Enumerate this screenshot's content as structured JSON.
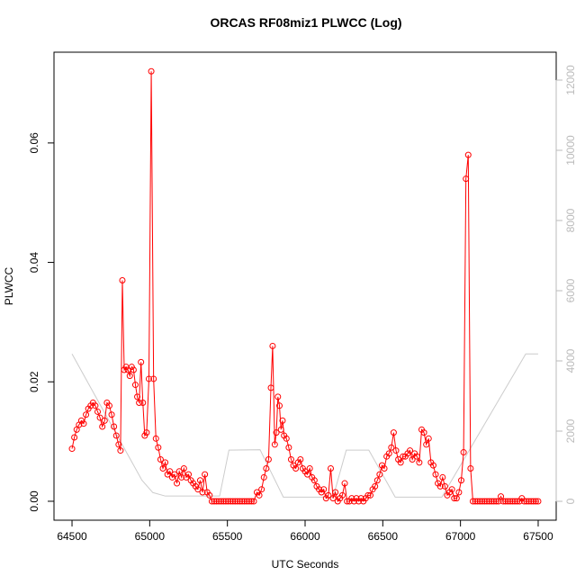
{
  "chart_data": {
    "type": "line",
    "title": "ORCAS RF08miz1 PLWCC (Log)",
    "x_label": "UTC Seconds",
    "y_label": "PLWCC",
    "xlim": [
      64384,
      67616
    ],
    "xticks": [
      64500,
      65000,
      65500,
      66000,
      66500,
      67000,
      67500
    ],
    "ylim": [
      -0.00317,
      0.0752
    ],
    "yticks": [
      {
        "value": 0,
        "label": "0.00"
      },
      0.02,
      0.04,
      0.06
    ],
    "y2lim": [
      -538,
      12795
    ],
    "y2ticks": [
      0,
      2000,
      4000,
      6000,
      8000,
      10000,
      12000
    ],
    "series": [
      {
        "color": "#ff0000",
        "markers": true,
        "x": [
          64500,
          64515,
          64530,
          64545,
          64560,
          64575,
          64590,
          64605,
          64620,
          64635,
          64650,
          64665,
          64680,
          64695,
          64710,
          64725,
          64740,
          64755,
          64770,
          64785,
          64800,
          64812,
          64824,
          64836,
          64848,
          64860,
          64872,
          64884,
          64896,
          64908,
          64920,
          64932,
          64944,
          64956,
          64968,
          64980,
          64995,
          65010,
          65025,
          65040,
          65055,
          65070,
          65085,
          65100,
          65115,
          65130,
          65145,
          65160,
          65175,
          65190,
          65205,
          65220,
          65235,
          65250,
          65265,
          65280,
          65295,
          65310,
          65325,
          65340,
          65355,
          65370,
          65385,
          65400,
          65415,
          65430,
          65445,
          65460,
          65475,
          65490,
          65505,
          65520,
          65535,
          65550,
          65565,
          65580,
          65595,
          65610,
          65625,
          65640,
          65655,
          65670,
          65690,
          65705,
          65720,
          65735,
          65750,
          65765,
          65780,
          65791,
          65805,
          65815,
          65825,
          65835,
          65845,
          65855,
          65865,
          65880,
          65895,
          65910,
          65925,
          65940,
          65955,
          65970,
          65985,
          66000,
          66015,
          66030,
          66045,
          66060,
          66075,
          66090,
          66105,
          66120,
          66135,
          66150,
          66165,
          66180,
          66195,
          66210,
          66225,
          66240,
          66255,
          66270,
          66285,
          66300,
          66315,
          66330,
          66345,
          66360,
          66375,
          66390,
          66405,
          66420,
          66435,
          66450,
          66465,
          66480,
          66495,
          66510,
          66525,
          66540,
          66555,
          66570,
          66585,
          66600,
          66615,
          66630,
          66645,
          66660,
          66675,
          66690,
          66705,
          66720,
          66735,
          66750,
          66765,
          66780,
          66795,
          66810,
          66825,
          66840,
          66855,
          66870,
          66885,
          66900,
          66915,
          66930,
          66945,
          66960,
          66975,
          66990,
          67005,
          67020,
          67035,
          67050,
          67065,
          67080,
          67095,
          67110,
          67125,
          67140,
          67155,
          67170,
          67185,
          67200,
          67215,
          67230,
          67245,
          67260,
          67275,
          67290,
          67305,
          67320,
          67335,
          67350,
          67365,
          67380,
          67395,
          67410,
          67425,
          67440,
          67455,
          67470,
          67485,
          67500
        ],
        "values": [
          0.0088,
          0.0107,
          0.012,
          0.0128,
          0.0135,
          0.013,
          0.0145,
          0.0155,
          0.016,
          0.0165,
          0.016,
          0.015,
          0.014,
          0.0125,
          0.0135,
          0.0165,
          0.016,
          0.0145,
          0.0125,
          0.011,
          0.0095,
          0.0085,
          0.037,
          0.022,
          0.0225,
          0.022,
          0.021,
          0.0225,
          0.022,
          0.0195,
          0.0175,
          0.0165,
          0.0233,
          0.0165,
          0.011,
          0.0115,
          0.0205,
          0.072,
          0.0205,
          0.0105,
          0.009,
          0.007,
          0.0055,
          0.0065,
          0.0045,
          0.005,
          0.004,
          0.0045,
          0.003,
          0.005,
          0.004,
          0.0055,
          0.004,
          0.0045,
          0.0035,
          0.003,
          0.0025,
          0.002,
          0.0035,
          0.0015,
          0.0045,
          0.0015,
          0.001,
          0,
          0,
          0,
          0,
          0,
          0,
          0,
          0,
          0,
          0,
          0,
          0,
          0,
          0,
          0,
          0,
          0,
          0,
          0,
          0.0015,
          0.001,
          0.002,
          0.004,
          0.0055,
          0.007,
          0.019,
          0.026,
          0.0095,
          0.0115,
          0.0175,
          0.016,
          0.012,
          0.0135,
          0.011,
          0.0105,
          0.009,
          0.007,
          0.006,
          0.0055,
          0.0065,
          0.007,
          0.0055,
          0.005,
          0.0045,
          0.0055,
          0.004,
          0.0035,
          0.0025,
          0.002,
          0.0015,
          0.002,
          0.0005,
          0.001,
          0.0055,
          0.0005,
          0.0015,
          0,
          0.0005,
          0.001,
          0.003,
          0,
          0,
          0.0005,
          0,
          0.0005,
          0,
          0.0005,
          0,
          0.0005,
          0.001,
          0.001,
          0.002,
          0.0025,
          0.0035,
          0.0045,
          0.006,
          0.0055,
          0.0075,
          0.008,
          0.009,
          0.0115,
          0.0085,
          0.007,
          0.0065,
          0.0075,
          0.0075,
          0.008,
          0.0085,
          0.007,
          0.008,
          0.0075,
          0.0065,
          0.012,
          0.0115,
          0.0095,
          0.0105,
          0.0065,
          0.006,
          0.0045,
          0.003,
          0.0025,
          0.004,
          0.0025,
          0.001,
          0.0015,
          0.002,
          0.0005,
          0.0005,
          0.0015,
          0.0035,
          0.0082,
          0.054,
          0.058,
          0.0055,
          0,
          0,
          0,
          0,
          0,
          0,
          0,
          0,
          0,
          0,
          0,
          0,
          0.0008,
          0,
          0,
          0,
          0,
          0,
          0,
          0,
          0,
          0.0005,
          0,
          0,
          0,
          0,
          0,
          0,
          0
        ]
      },
      {
        "color": "#cccccc",
        "axis": "y2",
        "markers": false,
        "x": [
          64500,
          64950,
          65020,
          65100,
          65450,
          65510,
          65710,
          65860,
          66180,
          66265,
          66410,
          66580,
          66880,
          67420,
          67500
        ],
        "values": [
          4200,
          600,
          250,
          150,
          150,
          1460,
          1470,
          120,
          120,
          1460,
          1460,
          120,
          120,
          4200,
          4200
        ]
      }
    ]
  }
}
